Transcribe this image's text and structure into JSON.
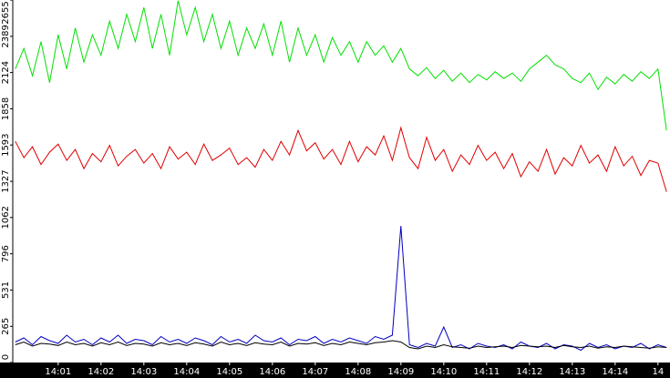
{
  "chart_data": {
    "type": "line",
    "x": [
      840.0,
      840.2,
      840.4,
      840.6,
      840.8,
      841.0,
      841.2,
      841.4,
      841.6,
      841.8,
      842.0,
      842.2,
      842.4,
      842.6,
      842.8,
      843.0,
      843.2,
      843.4,
      843.6,
      843.8,
      844.0,
      844.2,
      844.4,
      844.6,
      844.8,
      845.0,
      845.2,
      845.4,
      845.6,
      845.8,
      846.0,
      846.2,
      846.4,
      846.6,
      846.8,
      847.0,
      847.2,
      847.4,
      847.6,
      847.8,
      848.0,
      848.2,
      848.4,
      848.6,
      848.8,
      849.0,
      849.2,
      849.4,
      849.6,
      849.8,
      850.0,
      850.2,
      850.4,
      850.6,
      850.8,
      851.0,
      851.2,
      851.4,
      851.6,
      851.8,
      852.0,
      852.2,
      852.4,
      852.6,
      852.8,
      853.0,
      853.2,
      853.4,
      853.6,
      853.8,
      854.0,
      854.2,
      854.4,
      854.6,
      854.8,
      855.0,
      855.2
    ],
    "series": [
      {
        "color": "#00e000",
        "values": [
          2150,
          2300,
          2100,
          2350,
          2050,
          2400,
          2150,
          2450,
          2200,
          2400,
          2250,
          2500,
          2300,
          2550,
          2350,
          2600,
          2300,
          2550,
          2250,
          2650,
          2400,
          2600,
          2350,
          2550,
          2300,
          2500,
          2250,
          2450,
          2300,
          2480,
          2250,
          2500,
          2200,
          2450,
          2250,
          2400,
          2200,
          2380,
          2250,
          2350,
          2200,
          2350,
          2250,
          2320,
          2200,
          2300,
          2150,
          2100,
          2160,
          2080,
          2140,
          2060,
          2120,
          2050,
          2110,
          2070,
          2130,
          2080,
          2120,
          2060,
          2150,
          2200,
          2250,
          2180,
          2150,
          2080,
          2050,
          2120,
          2000,
          2090,
          2040,
          2110,
          2060,
          2130,
          2080,
          2150,
          1700
        ]
      },
      {
        "color": "#e00000",
        "values": [
          1620,
          1500,
          1580,
          1450,
          1540,
          1600,
          1480,
          1560,
          1420,
          1530,
          1470,
          1590,
          1440,
          1510,
          1560,
          1460,
          1530,
          1420,
          1580,
          1490,
          1540,
          1450,
          1600,
          1480,
          1520,
          1570,
          1450,
          1500,
          1430,
          1560,
          1480,
          1620,
          1520,
          1700,
          1550,
          1610,
          1490,
          1560,
          1450,
          1620,
          1470,
          1580,
          1520,
          1660,
          1480,
          1720,
          1500,
          1420,
          1650,
          1480,
          1560,
          1400,
          1520,
          1450,
          1590,
          1480,
          1540,
          1420,
          1530,
          1360,
          1470,
          1400,
          1560,
          1380,
          1500,
          1440,
          1590,
          1460,
          1520,
          1400,
          1580,
          1440,
          1510,
          1370,
          1480,
          1460,
          1250
        ]
      },
      {
        "color": "#0000c0",
        "values": [
          150,
          180,
          130,
          190,
          160,
          140,
          200,
          150,
          170,
          130,
          180,
          150,
          200,
          140,
          170,
          160,
          130,
          190,
          150,
          170,
          140,
          180,
          160,
          130,
          190,
          150,
          170,
          140,
          200,
          160,
          150,
          180,
          130,
          170,
          160,
          190,
          140,
          170,
          150,
          180,
          160,
          140,
          190,
          170,
          200,
          1000,
          130,
          110,
          140,
          120,
          260,
          110,
          130,
          100,
          140,
          120,
          110,
          130,
          100,
          150,
          120,
          110,
          140,
          100,
          130,
          120,
          90,
          140,
          110,
          130,
          100,
          120,
          110,
          140,
          100,
          130,
          110
        ]
      },
      {
        "color": "#000000",
        "values": [
          130,
          150,
          120,
          140,
          135,
          125,
          150,
          130,
          140,
          120,
          145,
          130,
          150,
          125,
          140,
          135,
          120,
          145,
          130,
          140,
          125,
          145,
          135,
          120,
          150,
          130,
          140,
          125,
          145,
          135,
          130,
          150,
          120,
          140,
          135,
          145,
          125,
          140,
          130,
          150,
          140,
          130,
          145,
          150,
          160,
          150,
          110,
          100,
          120,
          110,
          130,
          115,
          110,
          105,
          120,
          110,
          115,
          120,
          110,
          125,
          120,
          115,
          120,
          110,
          125,
          115,
          110,
          120,
          105,
          115,
          110,
          120,
          115,
          110,
          105,
          115,
          110
        ]
      }
    ],
    "xlim": [
      839.94,
      855.28
    ],
    "xticks": [
      {
        "value": 841,
        "label": "14:01"
      },
      {
        "value": 842,
        "label": "14:02"
      },
      {
        "value": 843,
        "label": "14:03"
      },
      {
        "value": 844,
        "label": "14:04"
      },
      {
        "value": 845,
        "label": "14:05"
      },
      {
        "value": 846,
        "label": "14:06"
      },
      {
        "value": 847,
        "label": "14:07"
      },
      {
        "value": 848,
        "label": "14:08"
      },
      {
        "value": 849,
        "label": "14:09"
      },
      {
        "value": 850,
        "label": "14:10"
      },
      {
        "value": 851,
        "label": "14:11"
      },
      {
        "value": 852,
        "label": "14:12"
      },
      {
        "value": 853,
        "label": "14:13"
      },
      {
        "value": 854,
        "label": "14:14"
      },
      {
        "value": 855,
        "label": "14"
      }
    ],
    "ylim": [
      0,
      2655
    ],
    "yticks": [
      0,
      265,
      531,
      796,
      1062,
      1327,
      1593,
      1858,
      2124,
      2389,
      2655
    ]
  }
}
